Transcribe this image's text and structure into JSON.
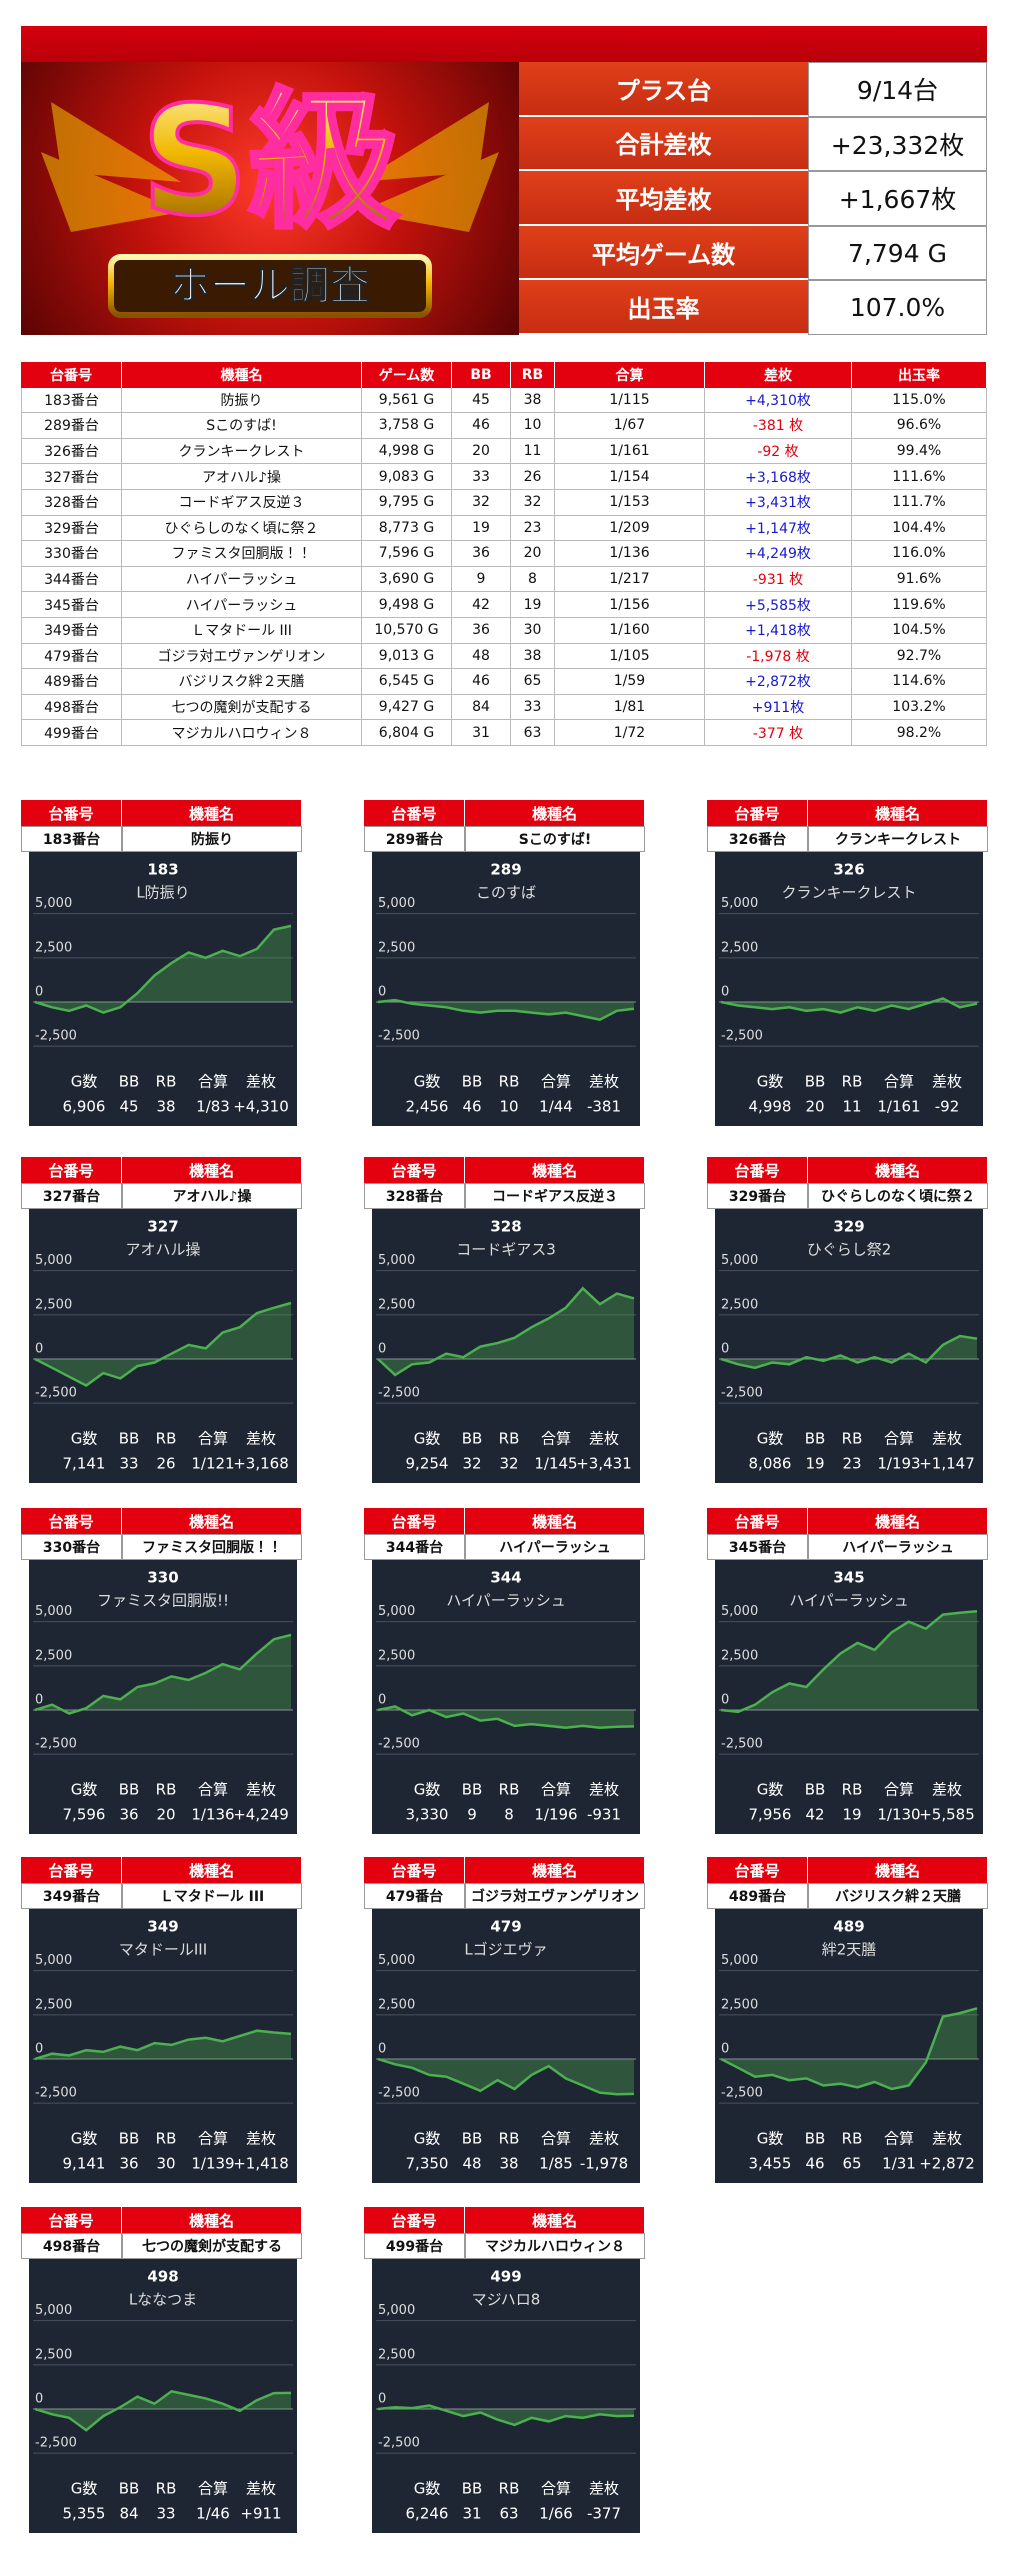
{
  "banner": {
    "logo": "S級",
    "subtitle": "ホール調査"
  },
  "summary": [
    {
      "label": "プラス台",
      "value": "9/14台"
    },
    {
      "label": "合計差枚",
      "value": "+23,332枚"
    },
    {
      "label": "平均差枚",
      "value": "+1,667枚"
    },
    {
      "label": "平均ゲーム数",
      "value": "7,794 G"
    },
    {
      "label": "出玉率",
      "value": "107.0%"
    }
  ],
  "table": {
    "headers": [
      "台番号",
      "機種名",
      "ゲーム数",
      "BB",
      "RB",
      "合算",
      "差枚",
      "出玉率"
    ],
    "rows": [
      [
        "183番台",
        "防振り",
        "9,561 G",
        "45",
        "38",
        "1/115",
        "+4,310枚",
        "115.0%"
      ],
      [
        "289番台",
        "Sこのすば!",
        "3,758 G",
        "46",
        "10",
        "1/67",
        "-381 枚",
        "96.6%"
      ],
      [
        "326番台",
        "クランキークレスト",
        "4,998 G",
        "20",
        "11",
        "1/161",
        "-92 枚",
        "99.4%"
      ],
      [
        "327番台",
        "アオハル♪操",
        "9,083 G",
        "33",
        "26",
        "1/154",
        "+3,168枚",
        "111.6%"
      ],
      [
        "328番台",
        "コードギアス反逆３",
        "9,795 G",
        "32",
        "32",
        "1/153",
        "+3,431枚",
        "111.7%"
      ],
      [
        "329番台",
        "ひぐらしのなく頃に祭２",
        "8,773 G",
        "19",
        "23",
        "1/209",
        "+1,147枚",
        "104.4%"
      ],
      [
        "330番台",
        "ファミスタ回胴版！！",
        "7,596 G",
        "36",
        "20",
        "1/136",
        "+4,249枚",
        "116.0%"
      ],
      [
        "344番台",
        "ハイパーラッシュ",
        "3,690 G",
        "9",
        "8",
        "1/217",
        "-931 枚",
        "91.6%"
      ],
      [
        "345番台",
        "ハイパーラッシュ",
        "9,498 G",
        "42",
        "19",
        "1/156",
        "+5,585枚",
        "119.6%"
      ],
      [
        "349番台",
        "Ｌマタドール III",
        "10,570 G",
        "36",
        "30",
        "1/160",
        "+1,418枚",
        "104.5%"
      ],
      [
        "479番台",
        "ゴジラ対エヴァンゲリオン",
        "9,013 G",
        "48",
        "38",
        "1/105",
        "-1,978 枚",
        "92.7%"
      ],
      [
        "489番台",
        "バジリスク絆２天膳",
        "6,545 G",
        "46",
        "65",
        "1/59",
        "+2,872枚",
        "114.6%"
      ],
      [
        "498番台",
        "七つの魔剣が支配する",
        "9,427 G",
        "84",
        "33",
        "1/81",
        "+911枚",
        "103.2%"
      ],
      [
        "499番台",
        "マジカルハロウィン８",
        "6,804 G",
        "31",
        "63",
        "1/72",
        "-377 枚",
        "98.2%"
      ]
    ]
  },
  "card_headers": [
    "台番号",
    "機種名"
  ],
  "stat_labels": [
    "G数",
    "BB",
    "RB",
    "合算",
    "差枚"
  ],
  "mini_chart": {
    "type": "line",
    "color": "#4caf50",
    "ylim": [
      -3000,
      6000
    ],
    "yticks": [
      {
        "value": 5000,
        "label": "5,000"
      },
      {
        "value": 2500,
        "label": "2,500"
      },
      0,
      {
        "value": -2500,
        "label": "-2,500"
      }
    ]
  },
  "machines": [
    {
      "no": "183番台",
      "model": "防振り",
      "chart_no": "183",
      "chart_name": "L防振り",
      "values": [
        0,
        -300,
        -500,
        -200,
        -600,
        -300,
        500,
        1500,
        2200,
        2800,
        2500,
        2900,
        2600,
        3000,
        4100,
        4310
      ],
      "stats": [
        "6,906",
        "45",
        "38",
        "1/83",
        "+4,310"
      ]
    },
    {
      "no": "289番台",
      "model": "Sこのすば!",
      "chart_no": "289",
      "chart_name": "このすば",
      "values": [
        0,
        100,
        -100,
        -200,
        -300,
        -500,
        -600,
        -500,
        -500,
        -600,
        -700,
        -600,
        -800,
        -1000,
        -500,
        -381
      ],
      "stats": [
        "2,456",
        "46",
        "10",
        "1/44",
        "-381"
      ]
    },
    {
      "no": "326番台",
      "model": "クランキークレスト",
      "chart_no": "326",
      "chart_name": "クランキークレスト",
      "values": [
        0,
        -200,
        -300,
        -400,
        -300,
        -500,
        -400,
        -600,
        -300,
        -500,
        -200,
        -400,
        -100,
        200,
        -300,
        -92
      ],
      "stats": [
        "4,998",
        "20",
        "11",
        "1/161",
        "-92"
      ]
    },
    {
      "no": "327番台",
      "model": "アオハル♪操",
      "chart_no": "327",
      "chart_name": "アオハル操",
      "values": [
        0,
        -500,
        -1000,
        -1500,
        -800,
        -1100,
        -400,
        -200,
        300,
        800,
        600,
        1500,
        1800,
        2600,
        2900,
        3168
      ],
      "stats": [
        "7,141",
        "33",
        "26",
        "1/121",
        "+3,168"
      ]
    },
    {
      "no": "328番台",
      "model": "コードギアス反逆３",
      "chart_no": "328",
      "chart_name": "コードギアス3",
      "values": [
        0,
        -900,
        -300,
        -200,
        300,
        100,
        700,
        900,
        1200,
        1800,
        2300,
        2900,
        4000,
        3100,
        3700,
        3431
      ],
      "stats": [
        "9,254",
        "32",
        "32",
        "1/145",
        "+3,431"
      ]
    },
    {
      "no": "329番台",
      "model": "ひぐらしのなく頃に祭２",
      "chart_no": "329",
      "chart_name": "ひぐらし祭2",
      "values": [
        0,
        -300,
        -500,
        -200,
        -300,
        100,
        -100,
        200,
        -200,
        100,
        -200,
        300,
        -200,
        800,
        1300,
        1147
      ],
      "stats": [
        "8,086",
        "19",
        "23",
        "1/193",
        "+1,147"
      ]
    },
    {
      "no": "330番台",
      "model": "ファミスタ回胴版！！",
      "chart_no": "330",
      "chart_name": "ファミスタ回胴版!!",
      "values": [
        0,
        300,
        -200,
        100,
        800,
        600,
        1300,
        1500,
        1900,
        1700,
        2100,
        2600,
        2300,
        3200,
        4000,
        4249
      ],
      "stats": [
        "7,596",
        "36",
        "20",
        "1/136",
        "+4,249"
      ]
    },
    {
      "no": "344番台",
      "model": "ハイパーラッシュ",
      "chart_no": "344",
      "chart_name": "ハイパーラッシュ",
      "values": [
        0,
        200,
        -300,
        0,
        -400,
        -200,
        -600,
        -500,
        -900,
        -800,
        -900,
        -1000,
        -900,
        -1000,
        -950,
        -931
      ],
      "stats": [
        "3,330",
        "9",
        "8",
        "1/196",
        "-931"
      ]
    },
    {
      "no": "345番台",
      "model": "ハイパーラッシュ",
      "chart_no": "345",
      "chart_name": "ハイパーラッシュ",
      "values": [
        0,
        -100,
        300,
        1000,
        1500,
        1300,
        2300,
        3200,
        3800,
        3400,
        4400,
        5000,
        4600,
        5400,
        5500,
        5585
      ],
      "stats": [
        "7,956",
        "42",
        "19",
        "1/130",
        "+5,585"
      ]
    },
    {
      "no": "349番台",
      "model": "Ｌマタドール III",
      "chart_no": "349",
      "chart_name": "マタドールIII",
      "values": [
        0,
        300,
        200,
        500,
        400,
        700,
        500,
        900,
        800,
        1100,
        1200,
        1000,
        1300,
        1600,
        1500,
        1418
      ],
      "stats": [
        "9,141",
        "36",
        "30",
        "1/139",
        "+1,418"
      ]
    },
    {
      "no": "479番台",
      "model": "ゴジラ対エヴァンゲリオン",
      "chart_no": "479",
      "chart_name": "Lゴジエヴァ",
      "values": [
        0,
        -300,
        -500,
        -900,
        -1000,
        -1400,
        -1800,
        -1200,
        -1700,
        -900,
        -400,
        -1100,
        -1500,
        -1900,
        -2000,
        -1978
      ],
      "stats": [
        "7,350",
        "48",
        "38",
        "1/85",
        "-1,978"
      ]
    },
    {
      "no": "489番台",
      "model": "バジリスク絆２天膳",
      "chart_no": "489",
      "chart_name": "絆2天膳",
      "values": [
        0,
        -500,
        -1000,
        -900,
        -1200,
        -1100,
        -1500,
        -1400,
        -1600,
        -1300,
        -1700,
        -1500,
        -200,
        2400,
        2600,
        2872
      ],
      "stats": [
        "3,455",
        "46",
        "65",
        "1/31",
        "+2,872"
      ]
    },
    {
      "no": "498番台",
      "model": "七つの魔剣が支配する",
      "chart_no": "498",
      "chart_name": "Lななつま",
      "values": [
        0,
        -300,
        -500,
        -1200,
        -400,
        100,
        700,
        300,
        1000,
        800,
        600,
        300,
        -100,
        500,
        900,
        911
      ],
      "stats": [
        "5,355",
        "84",
        "33",
        "1/46",
        "+911"
      ]
    },
    {
      "no": "499番台",
      "model": "マジカルハロウィン８",
      "chart_no": "499",
      "chart_name": "マジハロ8",
      "values": [
        0,
        100,
        50,
        200,
        -100,
        -400,
        -200,
        -600,
        -900,
        -500,
        -700,
        -400,
        -500,
        -300,
        -400,
        -377
      ],
      "stats": [
        "6,246",
        "31",
        "63",
        "1/66",
        "-377"
      ]
    }
  ]
}
